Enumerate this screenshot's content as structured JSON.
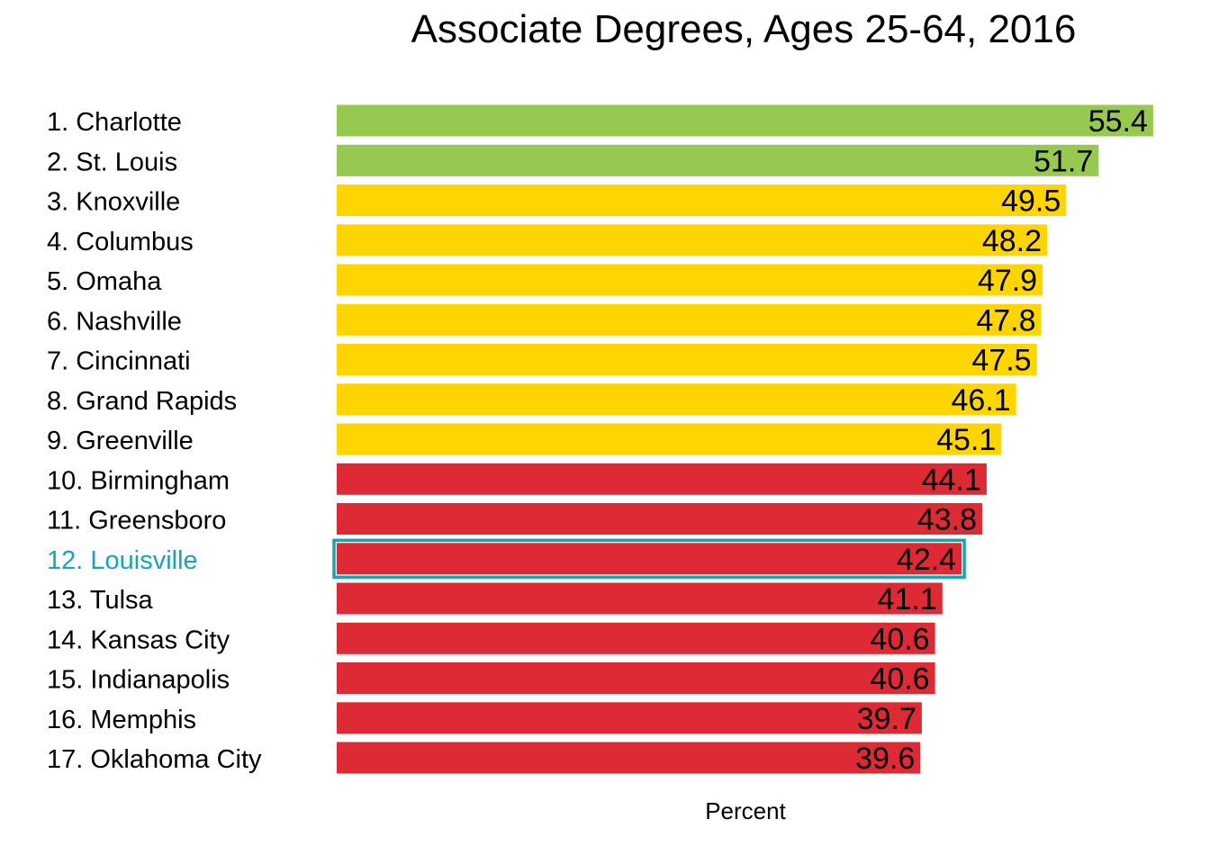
{
  "chart_data": {
    "type": "bar",
    "orientation": "horizontal",
    "title": "Associate Degrees, Ages 25-64, 2016",
    "xlabel": "Percent",
    "ylabel": "",
    "categories": [
      "1. Charlotte",
      "2. St. Louis",
      "3. Knoxville",
      "4. Columbus",
      "5. Omaha",
      "6. Nashville",
      "7. Cincinnati",
      "8. Grand Rapids",
      "9. Greenville",
      "10. Birmingham",
      "11. Greensboro",
      "12. Louisville",
      "13. Tulsa",
      "14. Kansas City",
      "15. Indianapolis",
      "16. Memphis",
      "17. Oklahoma City"
    ],
    "values": [
      55.4,
      51.7,
      49.5,
      48.2,
      47.9,
      47.8,
      47.5,
      46.1,
      45.1,
      44.1,
      43.8,
      42.4,
      41.1,
      40.6,
      40.6,
      39.7,
      39.6
    ],
    "value_labels": [
      "55.4",
      "51.7",
      "49.5",
      "48.2",
      "47.9",
      "47.8",
      "47.5",
      "46.1",
      "45.1",
      "44.1",
      "43.8",
      "42.4",
      "41.1",
      "40.6",
      "40.6",
      "39.7",
      "39.6"
    ],
    "tiers": [
      "top",
      "top",
      "middle",
      "middle",
      "middle",
      "middle",
      "middle",
      "middle",
      "middle",
      "bottom",
      "bottom",
      "bottom",
      "bottom",
      "bottom",
      "bottom",
      "bottom",
      "bottom"
    ],
    "highlight": "12. Louisville",
    "grid": false,
    "legend": "none",
    "colors": {
      "top": "#96c950",
      "middle": "#ffd500",
      "bottom": "#dd2a35",
      "highlight": "#1aa3b4",
      "text": "#000000"
    }
  }
}
